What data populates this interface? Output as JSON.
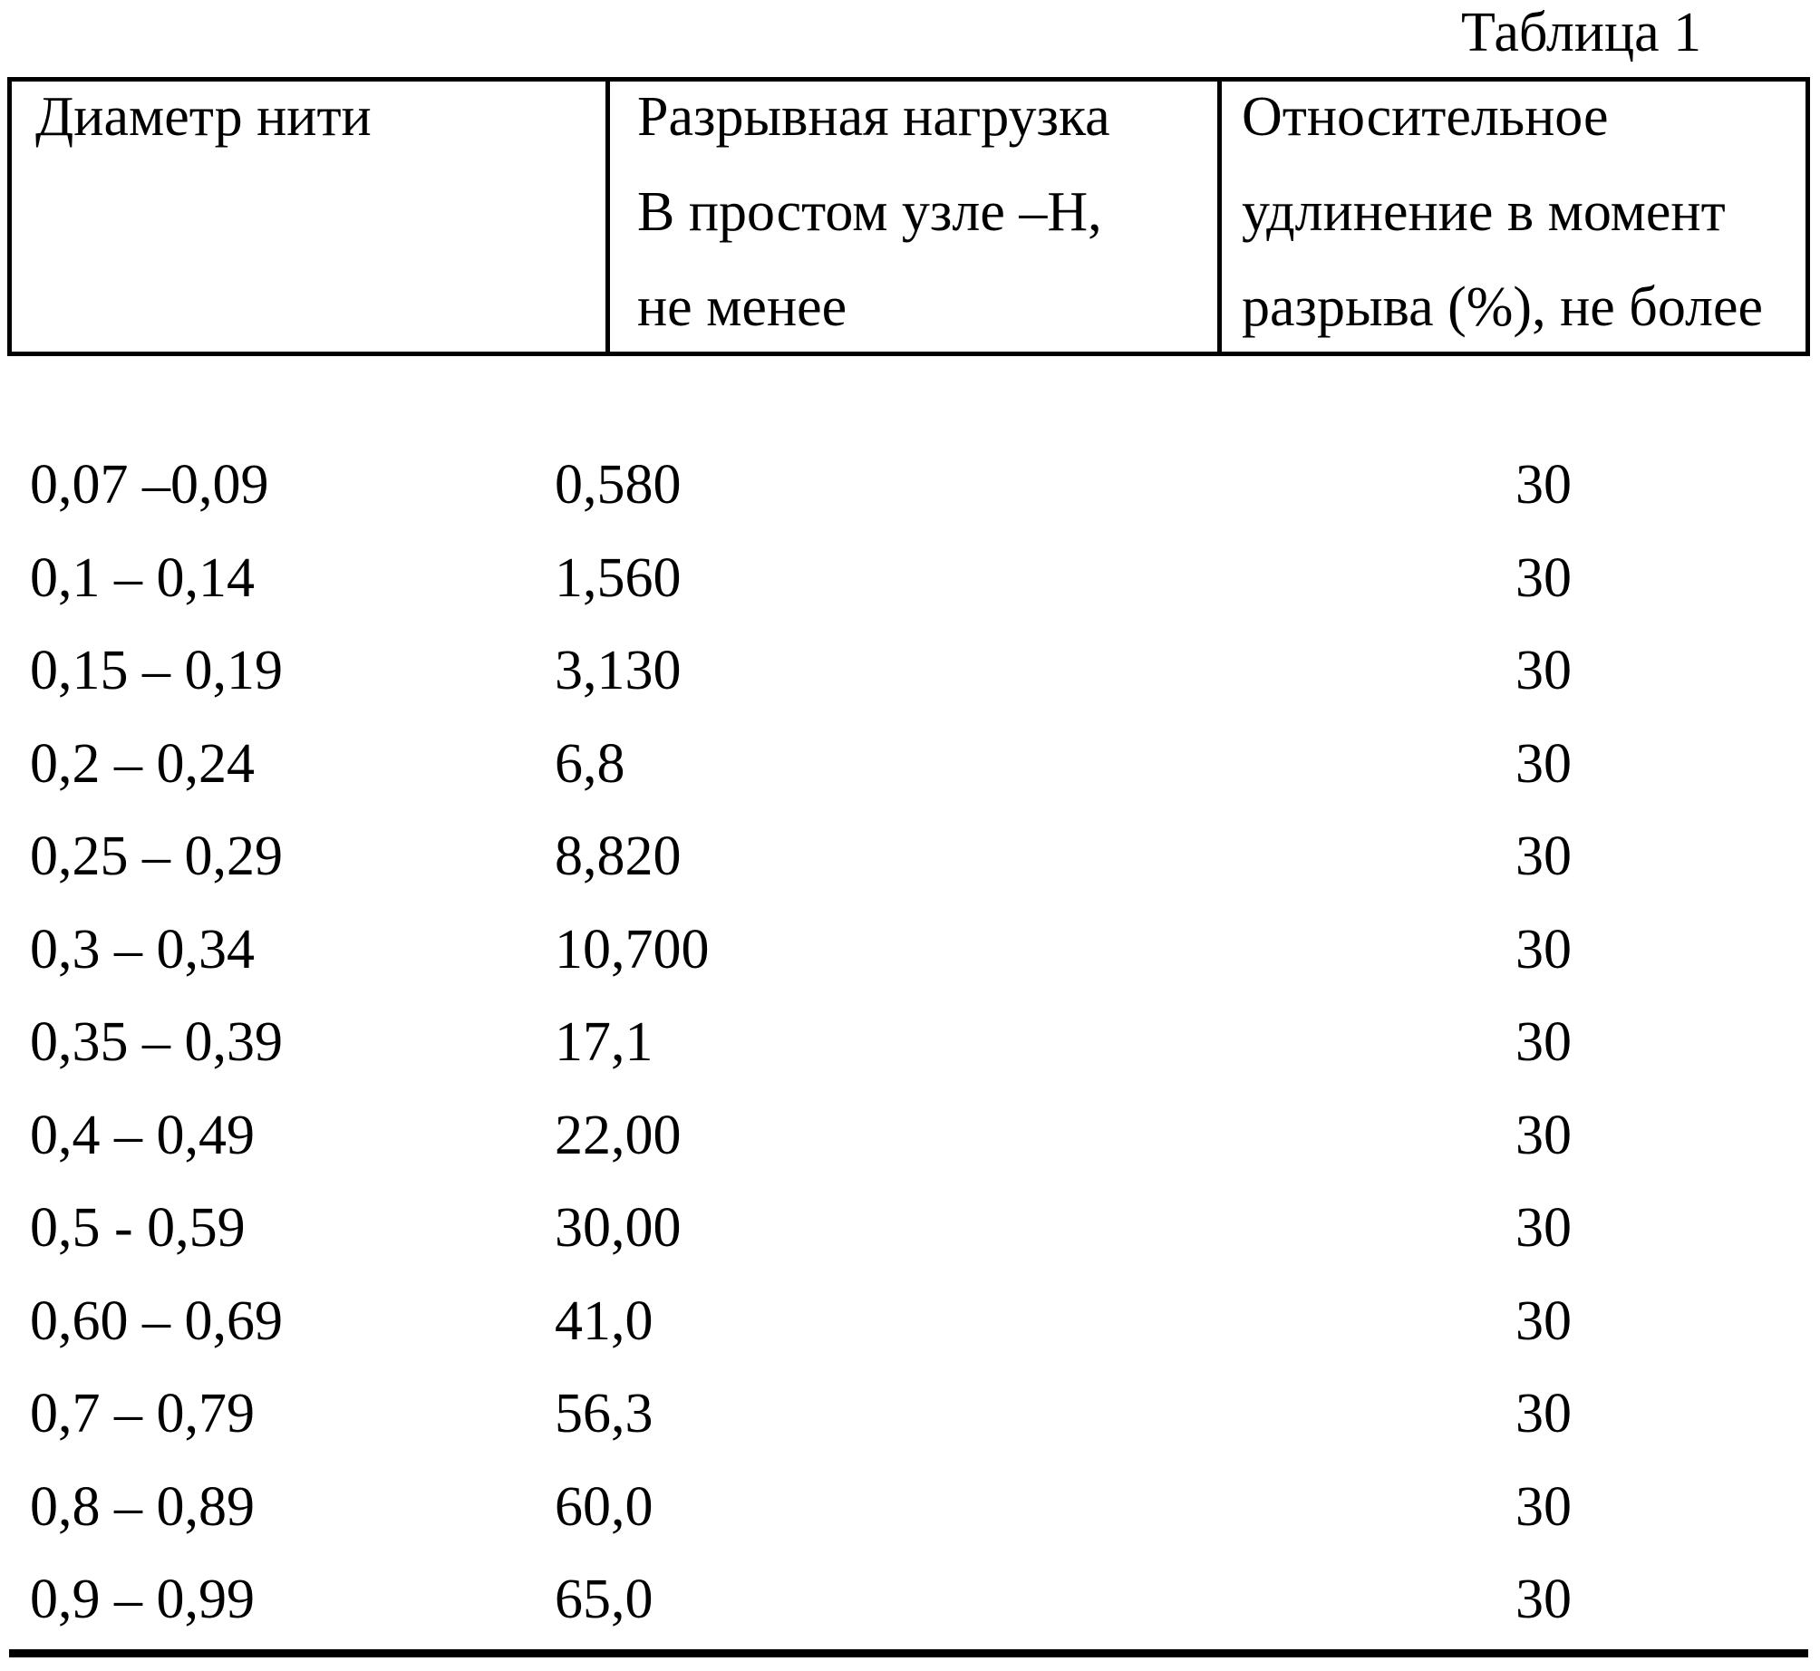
{
  "page": {
    "caption": "Таблица 1",
    "ink_color": "#000000",
    "paper_color": "#ffffff"
  },
  "table": {
    "headers": [
      {
        "lines": [
          "Диаметр нити",
          "",
          ""
        ]
      },
      {
        "lines": [
          "Разрывная нагрузка",
          "В простом узле –Н,",
          "не менее"
        ]
      },
      {
        "lines": [
          "Относительное",
          "удлинение в момент",
          "разрыва (%), не более"
        ]
      }
    ],
    "columns": [
      "Диаметр нити",
      "Разрывная нагрузка В простом узле –Н, не менее",
      "Относительное удлинение в момент разрыва (%), не более"
    ],
    "rows": [
      [
        "0,07 –0,09",
        "0,580",
        "30"
      ],
      [
        "0,1 – 0,14",
        "1,560",
        "30"
      ],
      [
        "0,15 – 0,19",
        "3,130",
        "30"
      ],
      [
        "0,2 – 0,24",
        "6,8",
        "30"
      ],
      [
        "0,25 – 0,29",
        "8,820",
        "30"
      ],
      [
        "0,3 – 0,34",
        "10,700",
        "30"
      ],
      [
        "0,35 – 0,39",
        "17,1",
        "30"
      ],
      [
        "0,4 – 0,49",
        "22,00",
        "30"
      ],
      [
        "0,5 - 0,59",
        "30,00",
        "30"
      ],
      [
        "0,60 – 0,69",
        "41,0",
        "30"
      ],
      [
        "0,7 – 0,79",
        "56,3",
        "30"
      ],
      [
        "0,8 – 0,89",
        "60,0",
        "30"
      ],
      [
        "0,9 – 0,99",
        "65,0",
        "30"
      ]
    ]
  }
}
